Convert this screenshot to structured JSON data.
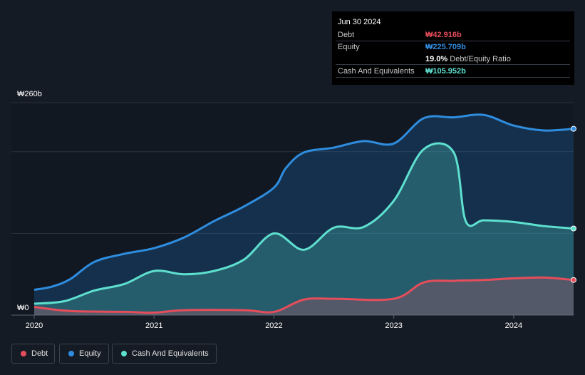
{
  "tooltip": {
    "date": "Jun 30 2024",
    "rows": [
      {
        "label": "Debt",
        "value": "₩42.916b",
        "color": "#e64d5b"
      },
      {
        "label": "Equity",
        "value": "₩225.709b",
        "color": "#2f8ddf"
      },
      {
        "label": "",
        "value": "",
        "color": ""
      },
      {
        "label": "Cash And Equivalents",
        "value": "₩105.952b",
        "color": "#5ee0cf"
      }
    ],
    "ratio_value": "19.0%",
    "ratio_label": " Debt/Equity Ratio"
  },
  "legend": [
    {
      "label": "Debt",
      "color": "#e64d5b"
    },
    {
      "label": "Equity",
      "color": "#2f8ddf"
    },
    {
      "label": "Cash And Equivalents",
      "color": "#5ee0cf"
    }
  ],
  "chart_data": {
    "type": "area",
    "currency": "KRW",
    "y_top_label": "₩260b",
    "y_bottom_label": "₩0",
    "ylim": [
      0,
      260
    ],
    "xlim": [
      2020,
      2024.5
    ],
    "x_ticks": [
      2020,
      2021,
      2022,
      2023,
      2024
    ],
    "x_tick_labels": [
      "2020",
      "2021",
      "2022",
      "2023",
      "2024"
    ],
    "grid": true,
    "legend_position": "bottom-left",
    "series": [
      {
        "name": "Equity",
        "color": "#2f8ddf",
        "points": [
          [
            2020.0,
            31
          ],
          [
            2020.15,
            35
          ],
          [
            2020.3,
            44
          ],
          [
            2020.5,
            65
          ],
          [
            2020.75,
            75
          ],
          [
            2021.0,
            82
          ],
          [
            2021.25,
            95
          ],
          [
            2021.5,
            115
          ],
          [
            2021.75,
            133
          ],
          [
            2022.0,
            156
          ],
          [
            2022.1,
            180
          ],
          [
            2022.25,
            199
          ],
          [
            2022.5,
            205
          ],
          [
            2022.75,
            213
          ],
          [
            2023.0,
            210
          ],
          [
            2023.25,
            241
          ],
          [
            2023.5,
            242
          ],
          [
            2023.75,
            245
          ],
          [
            2024.0,
            232
          ],
          [
            2024.25,
            226
          ],
          [
            2024.5,
            228
          ]
        ]
      },
      {
        "name": "Cash And Equivalents",
        "color": "#5ee0cf",
        "points": [
          [
            2020.0,
            14
          ],
          [
            2020.25,
            17
          ],
          [
            2020.5,
            30
          ],
          [
            2020.75,
            38
          ],
          [
            2021.0,
            54
          ],
          [
            2021.25,
            50
          ],
          [
            2021.5,
            54
          ],
          [
            2021.75,
            68
          ],
          [
            2022.0,
            100
          ],
          [
            2022.25,
            80
          ],
          [
            2022.5,
            107
          ],
          [
            2022.75,
            108
          ],
          [
            2023.0,
            140
          ],
          [
            2023.25,
            203
          ],
          [
            2023.5,
            199
          ],
          [
            2023.6,
            115
          ],
          [
            2023.75,
            116
          ],
          [
            2024.0,
            114
          ],
          [
            2024.25,
            109
          ],
          [
            2024.5,
            106
          ]
        ]
      },
      {
        "name": "Debt",
        "color": "#e64d5b",
        "points": [
          [
            2020.0,
            10
          ],
          [
            2020.3,
            5
          ],
          [
            2020.75,
            4
          ],
          [
            2021.0,
            3
          ],
          [
            2021.25,
            6
          ],
          [
            2021.75,
            6
          ],
          [
            2022.0,
            4
          ],
          [
            2022.25,
            19
          ],
          [
            2022.5,
            20
          ],
          [
            2023.0,
            20
          ],
          [
            2023.25,
            40
          ],
          [
            2023.5,
            42
          ],
          [
            2023.75,
            43
          ],
          [
            2024.0,
            45
          ],
          [
            2024.25,
            46
          ],
          [
            2024.5,
            43
          ]
        ]
      }
    ]
  }
}
